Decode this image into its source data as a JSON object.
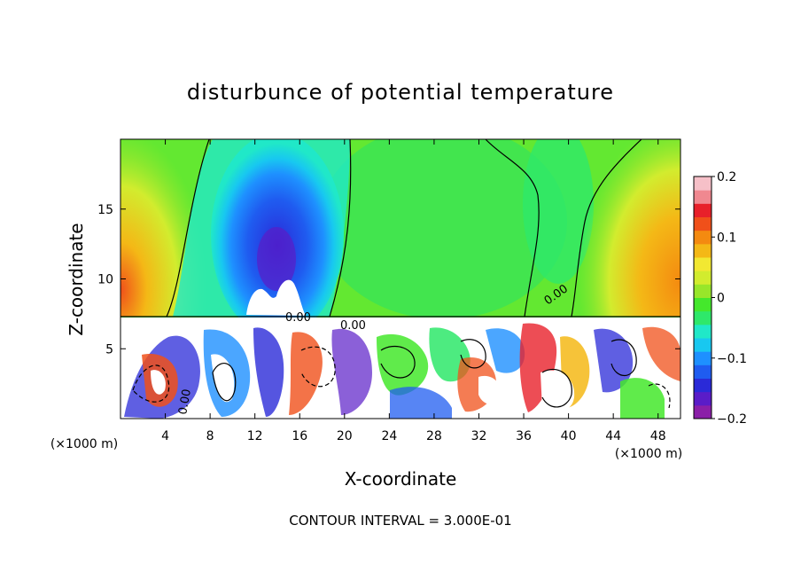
{
  "chart_data": {
    "type": "heatmap",
    "title": "disturbunce of potential temperature",
    "xlabel": "X-coordinate",
    "ylabel": "Z-coordinate",
    "x_unit": "(×1000 m)",
    "y_unit": "(×1000 m)",
    "xlim": [
      0,
      50
    ],
    "ylim": [
      0,
      20
    ],
    "x_ticks": [
      4,
      8,
      12,
      16,
      20,
      24,
      28,
      32,
      36,
      40,
      44,
      48
    ],
    "y_ticks": [
      5,
      10,
      15
    ],
    "colorbar": {
      "min": -0.2,
      "max": 0.2,
      "ticks": [
        0.2,
        0.1,
        0,
        -0.1,
        -0.2
      ],
      "tick_labels": [
        "0.2",
        "0.1",
        "0",
        "−0.1",
        "−0.2"
      ],
      "colors": [
        "#8b1fa8",
        "#5a1cc8",
        "#2a2ad8",
        "#1f5cf0",
        "#1e90ff",
        "#18c8f0",
        "#20e8c8",
        "#2ee86a",
        "#44e82c",
        "#98e62a",
        "#d2ec2e",
        "#f2e832",
        "#f4b816",
        "#f48a10",
        "#f0501a",
        "#e8202a",
        "#f08890",
        "#f6c0c8"
      ]
    },
    "contour_labels": [
      "0.00",
      "0.00",
      "0.00",
      "0.00"
    ],
    "footnote": "CONTOUR INTERVAL = 3.000E-01",
    "grid": false,
    "legend": "colorbar-right"
  }
}
